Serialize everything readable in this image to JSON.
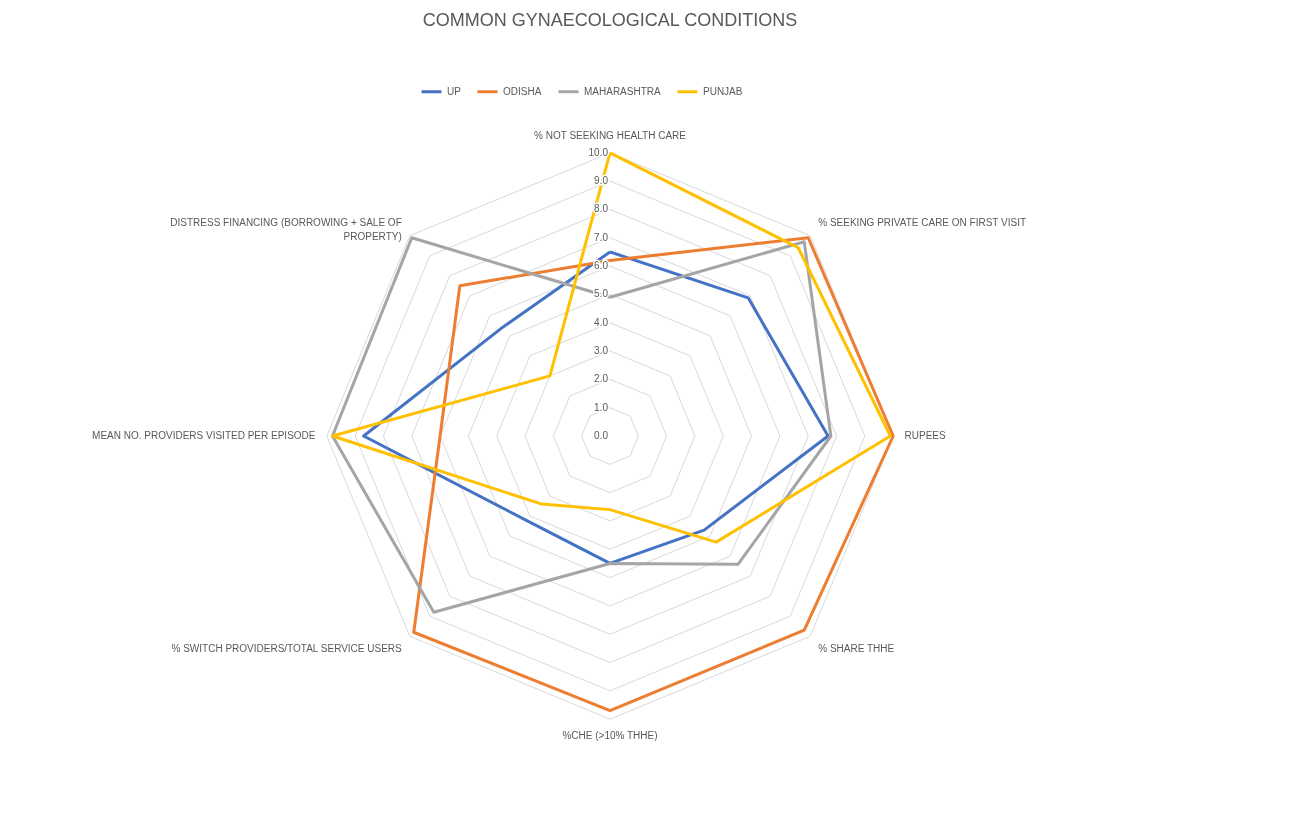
{
  "chart_data": {
    "type": "radar",
    "title": "COMMON GYNAECOLOGICAL CONDITIONS",
    "categories": [
      "% NOT SEEKING HEALTH CARE",
      "% SEEKING PRIVATE CARE ON FIRST VISIT",
      "RUPEES",
      "% SHARE THHE",
      "%CHE (>10% THHE)",
      "% SWITCH PROVIDERS/TOTAL SERVICE USERS",
      "MEAN NO. PROVIDERS VISITED PER EPISODE",
      "DISTRESS FINANCING (BORROWING + SALE OF PROPERTY)"
    ],
    "series": [
      {
        "name": "UP",
        "color": "#4472c4",
        "values": [
          6.5,
          6.9,
          7.7,
          4.7,
          4.5,
          4.2,
          8.7,
          5.4
        ]
      },
      {
        "name": "ODISHA",
        "color": "#ed7d31",
        "values": [
          6.2,
          9.9,
          10.0,
          9.7,
          9.7,
          9.8,
          6.0,
          7.5
        ]
      },
      {
        "name": "MAHARASHTRA",
        "color": "#a5a5a5",
        "values": [
          4.9,
          9.7,
          7.8,
          6.4,
          4.5,
          8.8,
          9.8,
          9.9
        ]
      },
      {
        "name": "PUNJAB",
        "color": "#ffc000",
        "values": [
          10.0,
          9.4,
          9.9,
          5.3,
          2.6,
          3.4,
          9.8,
          3.0
        ]
      }
    ],
    "ylim": [
      0,
      10
    ],
    "yticks": [
      {
        "value": 0,
        "label": "0.0"
      },
      {
        "value": 1,
        "label": "1.0"
      },
      {
        "value": 2,
        "label": "2.0"
      },
      {
        "value": 3,
        "label": "3.0"
      },
      {
        "value": 4,
        "label": "4.0"
      },
      {
        "value": 5,
        "label": "5.0"
      },
      {
        "value": 6,
        "label": "6.0"
      },
      {
        "value": 7,
        "label": "7.0"
      },
      {
        "value": 8,
        "label": "8.0"
      },
      {
        "value": 9,
        "label": "9.0"
      },
      {
        "value": 10,
        "label": "10.0"
      }
    ],
    "grid": true,
    "legend": "top"
  }
}
